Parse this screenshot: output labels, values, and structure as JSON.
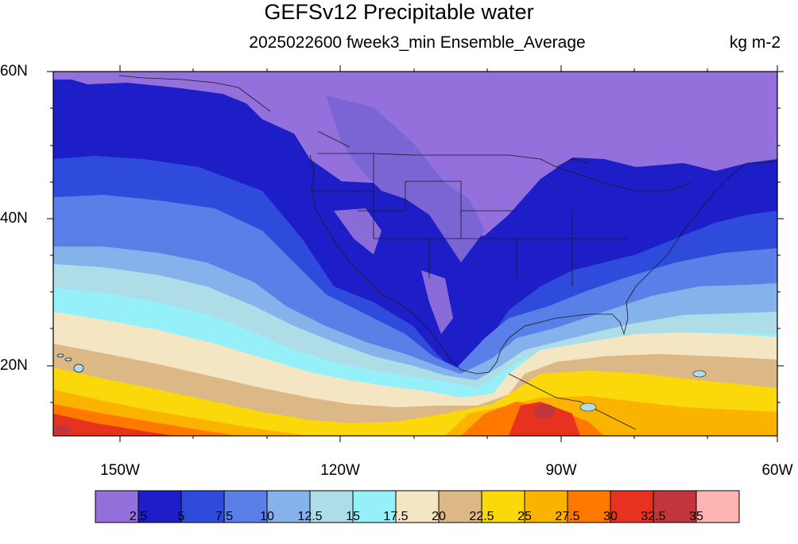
{
  "header": {
    "title": "GEFSv12 Precipitable water",
    "subtitle": "2025022600 fweek3_min Ensemble_Average",
    "units": "kg m-2"
  },
  "map": {
    "projection": "cylindrical equidistant",
    "lon_range": [
      -160,
      -60
    ],
    "lat_range": [
      10,
      60
    ],
    "lat_labels": [
      {
        "lat": 60,
        "text": "60N"
      },
      {
        "lat": 40,
        "text": "40N"
      },
      {
        "lat": 20,
        "text": "20N"
      }
    ],
    "lon_labels": [
      {
        "lon": -150,
        "text": "150W"
      },
      {
        "lon": -120,
        "text": "120W"
      },
      {
        "lon": -90,
        "text": "90W"
      },
      {
        "lon": -60,
        "text": "60W"
      }
    ]
  },
  "colorbar": {
    "labels": [
      "2.5",
      "5",
      "7.5",
      "10",
      "12.5",
      "15",
      "17.5",
      "20",
      "22.5",
      "25",
      "27.5",
      "30",
      "32.5",
      "35"
    ],
    "colors": [
      "#9370DB",
      "#1E1EC8",
      "#2E4BDB",
      "#5A7FE6",
      "#86B2EC",
      "#AEDDE8",
      "#96F0FA",
      "#F5E6C3",
      "#DCB887",
      "#FAD80A",
      "#FAB400",
      "#FF7800",
      "#E6321E",
      "#C0363A",
      "#FFB4B4"
    ]
  }
}
